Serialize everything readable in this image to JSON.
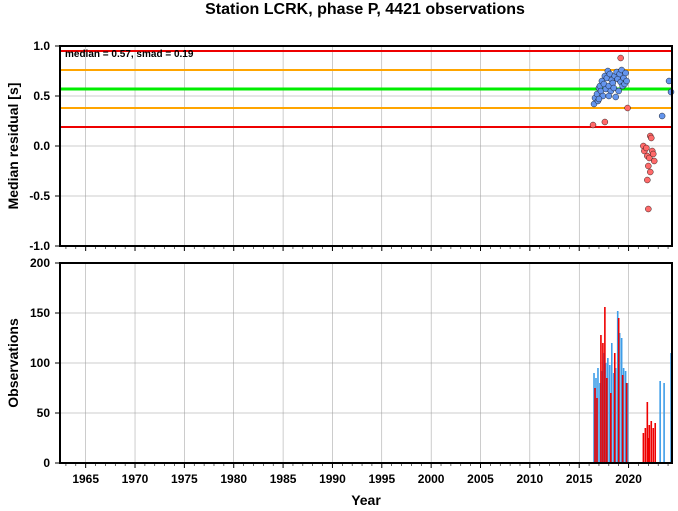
{
  "title": "Station LCRK, phase P, 4421 observations",
  "colors": {
    "median_line": "#00ee00",
    "smad_lines": "#ffa500",
    "limit_lines": "#ee0000",
    "good_points": "#6495ed",
    "bad_points": "#ff6a6a",
    "bar_good": "#3f9ee8",
    "bar_bad": "#ee0000",
    "grid": "#9a9a9a"
  },
  "chart_data": [
    {
      "type": "scatter",
      "ylabel": "Median residual [s]",
      "xlim": [
        1962.4,
        2024.4
      ],
      "ylim": [
        -1.0,
        1.0
      ],
      "grid": true,
      "annotation": "median = 0.57, smad = 0.19",
      "x_ticks": [
        1965,
        1970,
        1975,
        1980,
        1985,
        1990,
        1995,
        2000,
        2005,
        2010,
        2015,
        2020
      ],
      "y_ticks": [
        "1.0",
        "0.5",
        "0.0",
        "-0.5",
        "-1.0"
      ],
      "y_tick_values": [
        1.0,
        0.5,
        0.0,
        -0.5,
        -1.0
      ],
      "reference_lines": [
        {
          "name": "median",
          "y": 0.57,
          "color": "#00ee00"
        },
        {
          "name": "smad-upper",
          "y": 0.76,
          "color": "#ffa500"
        },
        {
          "name": "smad-lower",
          "y": 0.38,
          "color": "#ffa500"
        },
        {
          "name": "limit-upper",
          "y": 0.95,
          "color": "#ee0000"
        },
        {
          "name": "limit-lower",
          "y": 0.19,
          "color": "#ee0000"
        }
      ],
      "series": [
        {
          "group": "within",
          "color": "#6495ed",
          "points": [
            [
              2016.5,
              0.42
            ],
            [
              2016.6,
              0.48
            ],
            [
              2016.8,
              0.52
            ],
            [
              2016.9,
              0.45
            ],
            [
              2017.0,
              0.58
            ],
            [
              2017.1,
              0.6
            ],
            [
              2017.2,
              0.55
            ],
            [
              2017.3,
              0.65
            ],
            [
              2017.4,
              0.5
            ],
            [
              2017.5,
              0.62
            ],
            [
              2017.6,
              0.7
            ],
            [
              2017.7,
              0.57
            ],
            [
              2017.8,
              0.68
            ],
            [
              2017.9,
              0.75
            ],
            [
              2018.0,
              0.6
            ],
            [
              2018.1,
              0.72
            ],
            [
              2018.2,
              0.55
            ],
            [
              2018.3,
              0.66
            ],
            [
              2018.4,
              0.63
            ],
            [
              2018.5,
              0.58
            ],
            [
              2018.6,
              0.7
            ],
            [
              2018.7,
              0.49
            ],
            [
              2018.8,
              0.74
            ],
            [
              2018.9,
              0.67
            ],
            [
              2019.0,
              0.55
            ],
            [
              2019.1,
              0.72
            ],
            [
              2019.2,
              0.64
            ],
            [
              2019.3,
              0.76
            ],
            [
              2019.4,
              0.6
            ],
            [
              2019.5,
              0.68
            ],
            [
              2019.6,
              0.62
            ],
            [
              2019.7,
              0.73
            ],
            [
              2019.8,
              0.65
            ],
            [
              2017.0,
              0.47
            ],
            [
              2018.0,
              0.5
            ],
            [
              2023.4,
              0.3
            ],
            [
              2024.1,
              0.65
            ],
            [
              2024.3,
              0.54
            ]
          ]
        },
        {
          "group": "outside",
          "color": "#ff6a6a",
          "points": [
            [
              2016.4,
              0.21
            ],
            [
              2017.6,
              0.24
            ],
            [
              2019.2,
              0.88
            ],
            [
              2019.9,
              0.38
            ],
            [
              2021.5,
              0.0
            ],
            [
              2021.6,
              -0.05
            ],
            [
              2021.8,
              -0.02
            ],
            [
              2021.9,
              -0.1
            ],
            [
              2022.0,
              -0.2
            ],
            [
              2022.1,
              -0.12
            ],
            [
              2022.2,
              0.1
            ],
            [
              2022.3,
              0.08
            ],
            [
              2022.4,
              -0.05
            ],
            [
              2022.5,
              -0.08
            ],
            [
              2022.6,
              -0.15
            ],
            [
              2021.9,
              -0.34
            ],
            [
              2022.0,
              -0.63
            ],
            [
              2022.2,
              -0.26
            ]
          ]
        }
      ]
    },
    {
      "type": "bar",
      "xlabel": "Year",
      "ylabel": "Observations",
      "xlim": [
        1962.4,
        2024.4
      ],
      "ylim": [
        0,
        200
      ],
      "grid": true,
      "x_ticks": [
        1965,
        1970,
        1975,
        1980,
        1985,
        1990,
        1995,
        2000,
        2005,
        2010,
        2015,
        2020
      ],
      "y_ticks": [
        "200",
        "150",
        "100",
        "50",
        "0"
      ],
      "y_tick_values": [
        200,
        150,
        100,
        50,
        0
      ],
      "series": [
        {
          "group": "within",
          "color": "#3f9ee8",
          "bars": [
            [
              2016.5,
              90
            ],
            [
              2016.7,
              85
            ],
            [
              2016.9,
              95
            ],
            [
              2017.1,
              80
            ],
            [
              2017.3,
              92
            ],
            [
              2017.5,
              110
            ],
            [
              2017.7,
              100
            ],
            [
              2017.9,
              105
            ],
            [
              2018.1,
              98
            ],
            [
              2018.3,
              120
            ],
            [
              2018.5,
              90
            ],
            [
              2018.7,
              95
            ],
            [
              2018.9,
              152
            ],
            [
              2019.1,
              130
            ],
            [
              2019.3,
              125
            ],
            [
              2019.5,
              95
            ],
            [
              2019.7,
              92
            ],
            [
              2019.9,
              80
            ],
            [
              2023.2,
              82
            ],
            [
              2023.6,
              80
            ],
            [
              2024.3,
              110
            ]
          ]
        },
        {
          "group": "outside",
          "color": "#ee0000",
          "bars": [
            [
              2016.6,
              75
            ],
            [
              2016.8,
              65
            ],
            [
              2017.2,
              128
            ],
            [
              2017.4,
              120
            ],
            [
              2017.6,
              156
            ],
            [
              2017.8,
              85
            ],
            [
              2018.2,
              70
            ],
            [
              2018.6,
              110
            ],
            [
              2019.0,
              145
            ],
            [
              2019.4,
              88
            ],
            [
              2019.8,
              80
            ],
            [
              2021.5,
              30
            ],
            [
              2021.7,
              35
            ],
            [
              2021.9,
              61
            ],
            [
              2022.0,
              25
            ],
            [
              2022.1,
              38
            ],
            [
              2022.3,
              42
            ],
            [
              2022.5,
              35
            ],
            [
              2022.7,
              40
            ]
          ]
        }
      ]
    }
  ]
}
